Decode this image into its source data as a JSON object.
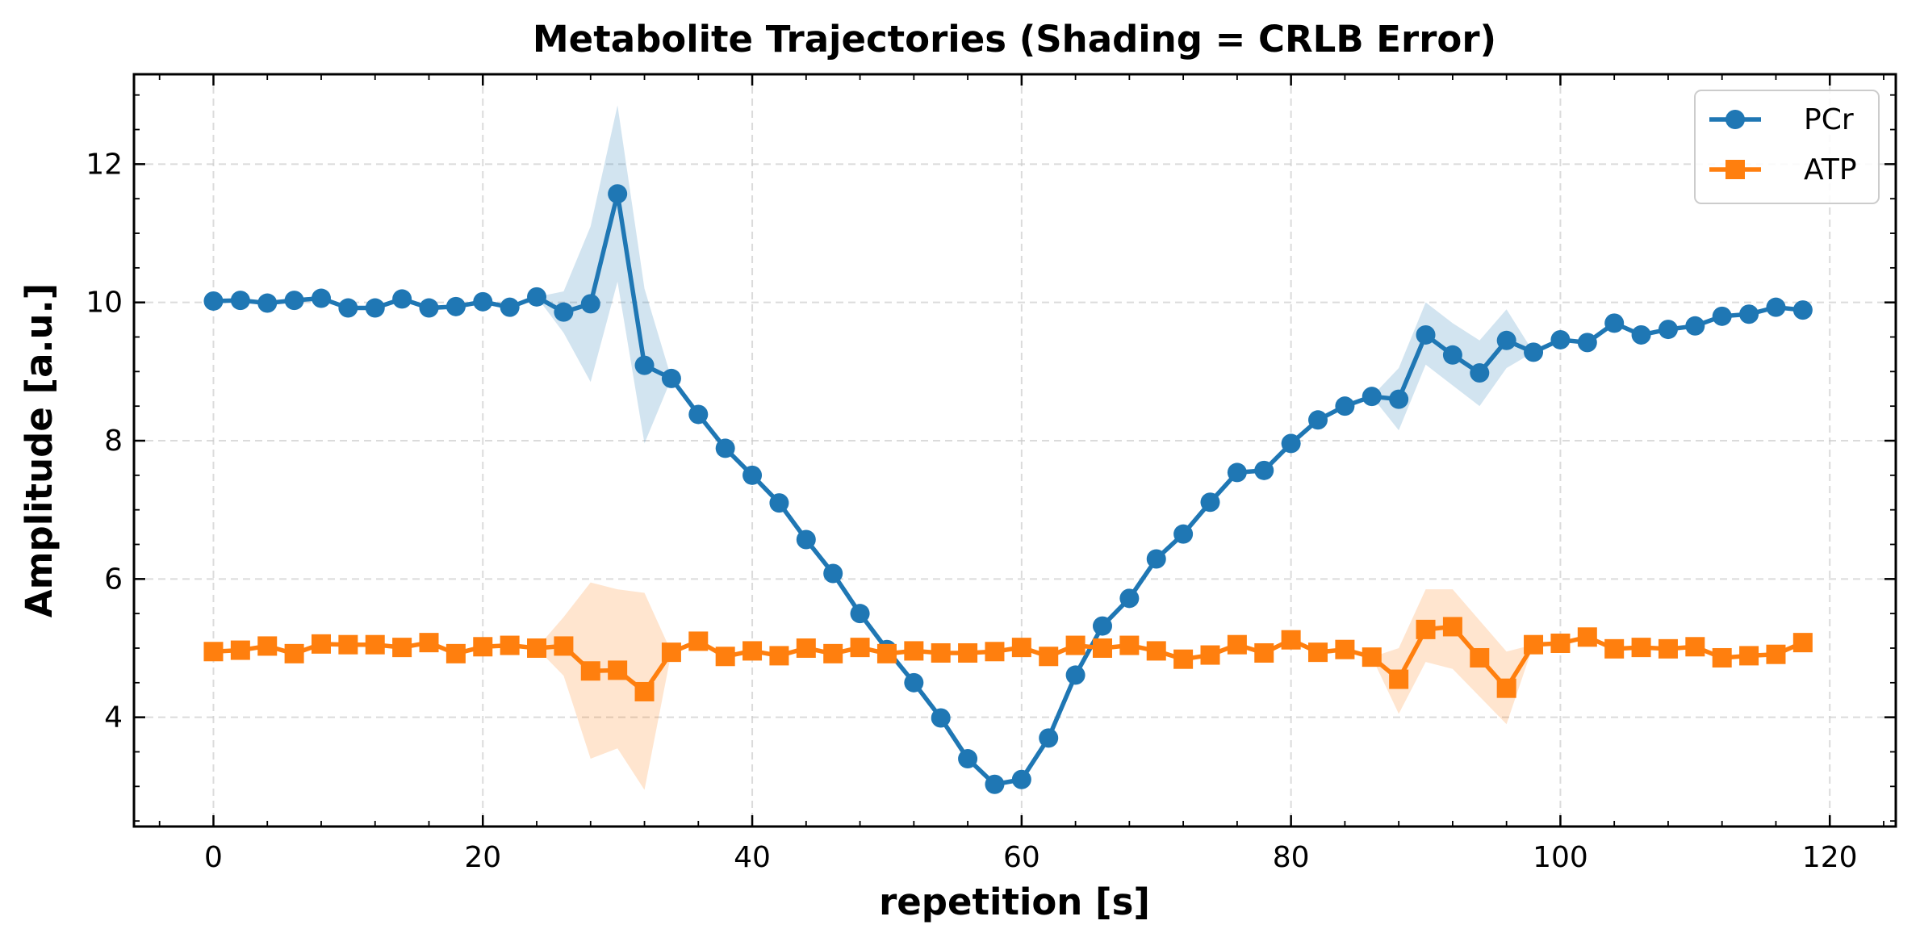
{
  "chart_data": {
    "type": "line",
    "title": "Metabolite Trajectories (Shading = CRLB Error)",
    "xlabel": "repetition [s]",
    "ylabel": "Amplitude [a.u.]",
    "xlim": [
      -5.9,
      124.9
    ],
    "ylim": [
      2.42,
      13.3
    ],
    "xticks": [
      0,
      20,
      40,
      60,
      80,
      100,
      120
    ],
    "yticks": [
      4,
      6,
      8,
      10,
      12
    ],
    "grid": true,
    "legend_position": "top-right",
    "x": [
      0,
      2,
      4,
      6,
      8,
      10,
      12,
      14,
      16,
      18,
      20,
      22,
      24,
      26,
      28,
      30,
      32,
      34,
      36,
      38,
      40,
      42,
      44,
      46,
      48,
      50,
      52,
      54,
      56,
      58,
      60,
      62,
      64,
      66,
      68,
      70,
      72,
      74,
      76,
      78,
      80,
      82,
      84,
      86,
      88,
      90,
      92,
      94,
      96,
      98,
      100,
      102,
      104,
      106,
      108,
      110,
      112,
      114,
      116,
      118
    ],
    "series": [
      {
        "name": "PCr",
        "color": "#1f77b4",
        "marker": "circle",
        "values": [
          10.02,
          10.03,
          9.99,
          10.03,
          10.06,
          9.92,
          9.92,
          10.05,
          9.92,
          9.94,
          10.01,
          9.93,
          10.08,
          9.86,
          9.98,
          11.57,
          9.09,
          8.9,
          8.38,
          7.89,
          7.5,
          7.1,
          6.57,
          6.08,
          5.5,
          4.98,
          4.5,
          3.99,
          3.4,
          3.03,
          3.1,
          3.7,
          4.61,
          5.32,
          5.72,
          6.29,
          6.65,
          7.11,
          7.54,
          7.57,
          7.96,
          8.3,
          8.5,
          8.64,
          8.6,
          9.53,
          9.24,
          8.98,
          9.45,
          9.28,
          9.46,
          9.42,
          9.7,
          9.53,
          9.61,
          9.66,
          9.8,
          9.83,
          9.93,
          9.89
        ],
        "error_lower": [
          10.02,
          10.03,
          9.99,
          10.03,
          10.06,
          9.92,
          9.92,
          10.05,
          9.92,
          9.94,
          10.01,
          9.93,
          10.08,
          9.56,
          8.85,
          10.3,
          7.96,
          8.9,
          8.38,
          7.89,
          7.5,
          7.1,
          6.57,
          6.08,
          5.5,
          4.98,
          4.5,
          3.99,
          3.4,
          3.03,
          3.1,
          3.7,
          4.61,
          5.32,
          5.72,
          6.29,
          6.65,
          7.11,
          7.54,
          7.57,
          7.96,
          8.3,
          8.5,
          8.64,
          8.15,
          9.1,
          8.8,
          8.5,
          9.05,
          9.28,
          9.46,
          9.42,
          9.7,
          9.53,
          9.61,
          9.66,
          9.8,
          9.83,
          9.93,
          9.89
        ],
        "error_upper": [
          10.02,
          10.03,
          9.99,
          10.03,
          10.06,
          9.92,
          9.92,
          10.05,
          9.92,
          9.94,
          10.01,
          9.93,
          10.08,
          10.16,
          11.1,
          12.85,
          10.2,
          8.9,
          8.38,
          7.89,
          7.5,
          7.1,
          6.57,
          6.08,
          5.5,
          4.98,
          4.5,
          3.99,
          3.4,
          3.03,
          3.1,
          3.7,
          4.61,
          5.32,
          5.72,
          6.29,
          6.65,
          7.11,
          7.54,
          7.57,
          7.96,
          8.3,
          8.5,
          8.64,
          9.05,
          10.0,
          9.7,
          9.45,
          9.9,
          9.28,
          9.46,
          9.42,
          9.7,
          9.53,
          9.61,
          9.66,
          9.8,
          9.83,
          9.93,
          9.89
        ]
      },
      {
        "name": "ATP",
        "color": "#ff7f0e",
        "marker": "square",
        "values": [
          4.95,
          4.97,
          5.03,
          4.92,
          5.06,
          5.05,
          5.05,
          5.01,
          5.08,
          4.92,
          5.02,
          5.04,
          5.0,
          5.03,
          4.67,
          4.68,
          4.37,
          4.94,
          5.1,
          4.88,
          4.96,
          4.89,
          5.0,
          4.92,
          5.01,
          4.92,
          4.96,
          4.93,
          4.93,
          4.95,
          5.01,
          4.88,
          5.04,
          5.0,
          5.04,
          4.96,
          4.84,
          4.9,
          5.05,
          4.93,
          5.12,
          4.94,
          4.98,
          4.87,
          4.55,
          5.27,
          5.31,
          4.86,
          4.42,
          5.05,
          5.07,
          5.16,
          4.99,
          5.01,
          4.99,
          5.02,
          4.86,
          4.89,
          4.91,
          5.08
        ],
        "error_lower": [
          4.95,
          4.97,
          5.03,
          4.92,
          5.06,
          5.05,
          5.05,
          5.01,
          5.08,
          4.92,
          5.02,
          5.04,
          5.0,
          4.6,
          3.4,
          3.55,
          2.95,
          4.94,
          5.1,
          4.88,
          4.96,
          4.89,
          5.0,
          4.92,
          5.01,
          4.92,
          4.96,
          4.93,
          4.93,
          4.95,
          5.01,
          4.88,
          5.04,
          5.0,
          5.04,
          4.96,
          4.84,
          4.9,
          5.05,
          4.93,
          5.12,
          4.94,
          4.98,
          4.87,
          4.05,
          4.8,
          4.7,
          4.3,
          3.9,
          5.05,
          5.07,
          5.16,
          4.99,
          5.01,
          4.99,
          5.02,
          4.86,
          4.89,
          4.91,
          5.08
        ],
        "error_upper": [
          4.95,
          4.97,
          5.03,
          4.92,
          5.06,
          5.05,
          5.05,
          5.01,
          5.08,
          4.92,
          5.02,
          5.04,
          5.0,
          5.45,
          5.95,
          5.85,
          5.8,
          4.94,
          5.1,
          4.88,
          4.96,
          4.89,
          5.0,
          4.92,
          5.01,
          4.92,
          4.96,
          4.93,
          4.93,
          4.95,
          5.01,
          4.88,
          5.04,
          5.0,
          5.04,
          4.96,
          4.84,
          4.9,
          5.05,
          4.93,
          5.12,
          4.94,
          4.98,
          4.87,
          5.0,
          5.85,
          5.85,
          5.4,
          4.95,
          5.05,
          5.07,
          5.16,
          4.99,
          5.01,
          4.99,
          5.02,
          4.86,
          4.89,
          4.91,
          5.08
        ]
      }
    ]
  }
}
